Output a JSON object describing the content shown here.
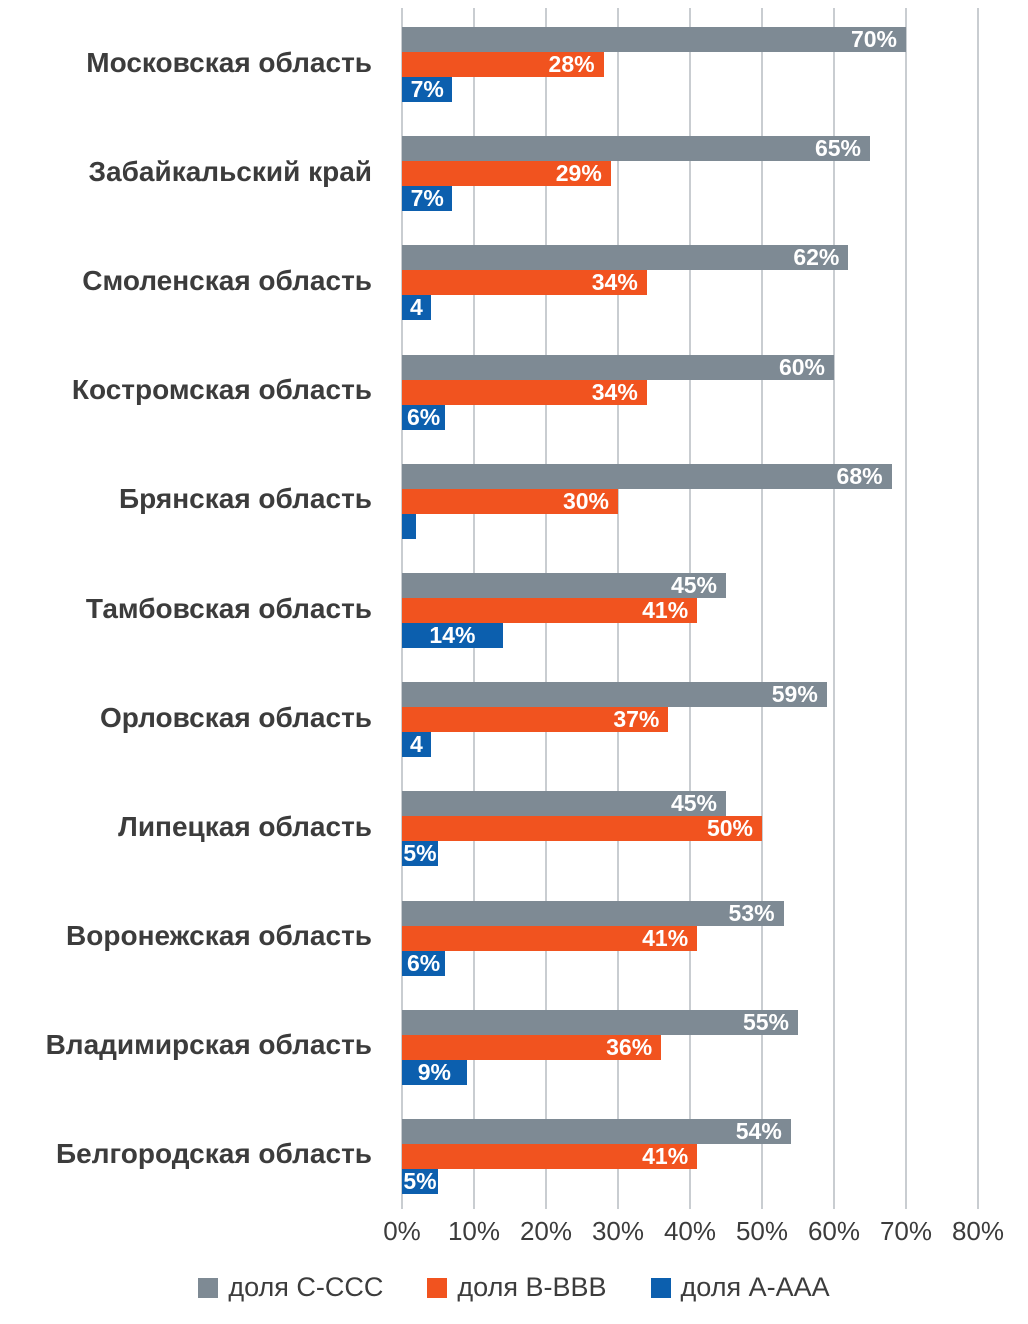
{
  "chart_data": {
    "type": "bar",
    "orientation": "horizontal",
    "title": "",
    "xlabel": "",
    "ylabel": "",
    "xlim": [
      0,
      80
    ],
    "x_ticks": [
      "0%",
      "10%",
      "20%",
      "30%",
      "40%",
      "50%",
      "60%",
      "70%",
      "80%"
    ],
    "grid": true,
    "legend_position": "bottom",
    "categories": [
      "Московская область",
      "Забайкальский край",
      "Смоленская область",
      "Костромская область",
      "Брянская область",
      "Тамбовская область",
      "Орловская область",
      "Липецкая область",
      "Воронежская область",
      "Владимирская область",
      "Белгородская область"
    ],
    "series": [
      {
        "name": "доля C-CCC",
        "color": "#7e8a94",
        "values": [
          70,
          65,
          62,
          60,
          68,
          45,
          59,
          45,
          53,
          55,
          54
        ],
        "labels": [
          "70%",
          "65%",
          "62%",
          "60%",
          "68%",
          "45%",
          "59%",
          "45%",
          "53%",
          "55%",
          "54%"
        ]
      },
      {
        "name": "доля B-BBB",
        "color": "#f1531f",
        "values": [
          28,
          29,
          34,
          34,
          30,
          41,
          37,
          50,
          41,
          36,
          41
        ],
        "labels": [
          "28%",
          "29%",
          "34%",
          "34%",
          "30%",
          "41%",
          "37%",
          "50%",
          "41%",
          "36%",
          "41%"
        ]
      },
      {
        "name": "доля A-AAA",
        "color": "#0c5fae",
        "values": [
          7,
          7,
          4,
          6,
          2,
          14,
          4,
          5,
          6,
          9,
          5
        ],
        "labels": [
          "7%",
          "7%",
          "4",
          "6%",
          "",
          "14%",
          "4",
          "5%",
          "6%",
          "9%",
          "5%"
        ]
      }
    ]
  },
  "colors": {
    "background": "#ffffff",
    "gridline": "#c9cdd1",
    "category_text": "#3c3c3c",
    "axis_text": "#3c3c3c",
    "bar_value_text": "#ffffff"
  }
}
